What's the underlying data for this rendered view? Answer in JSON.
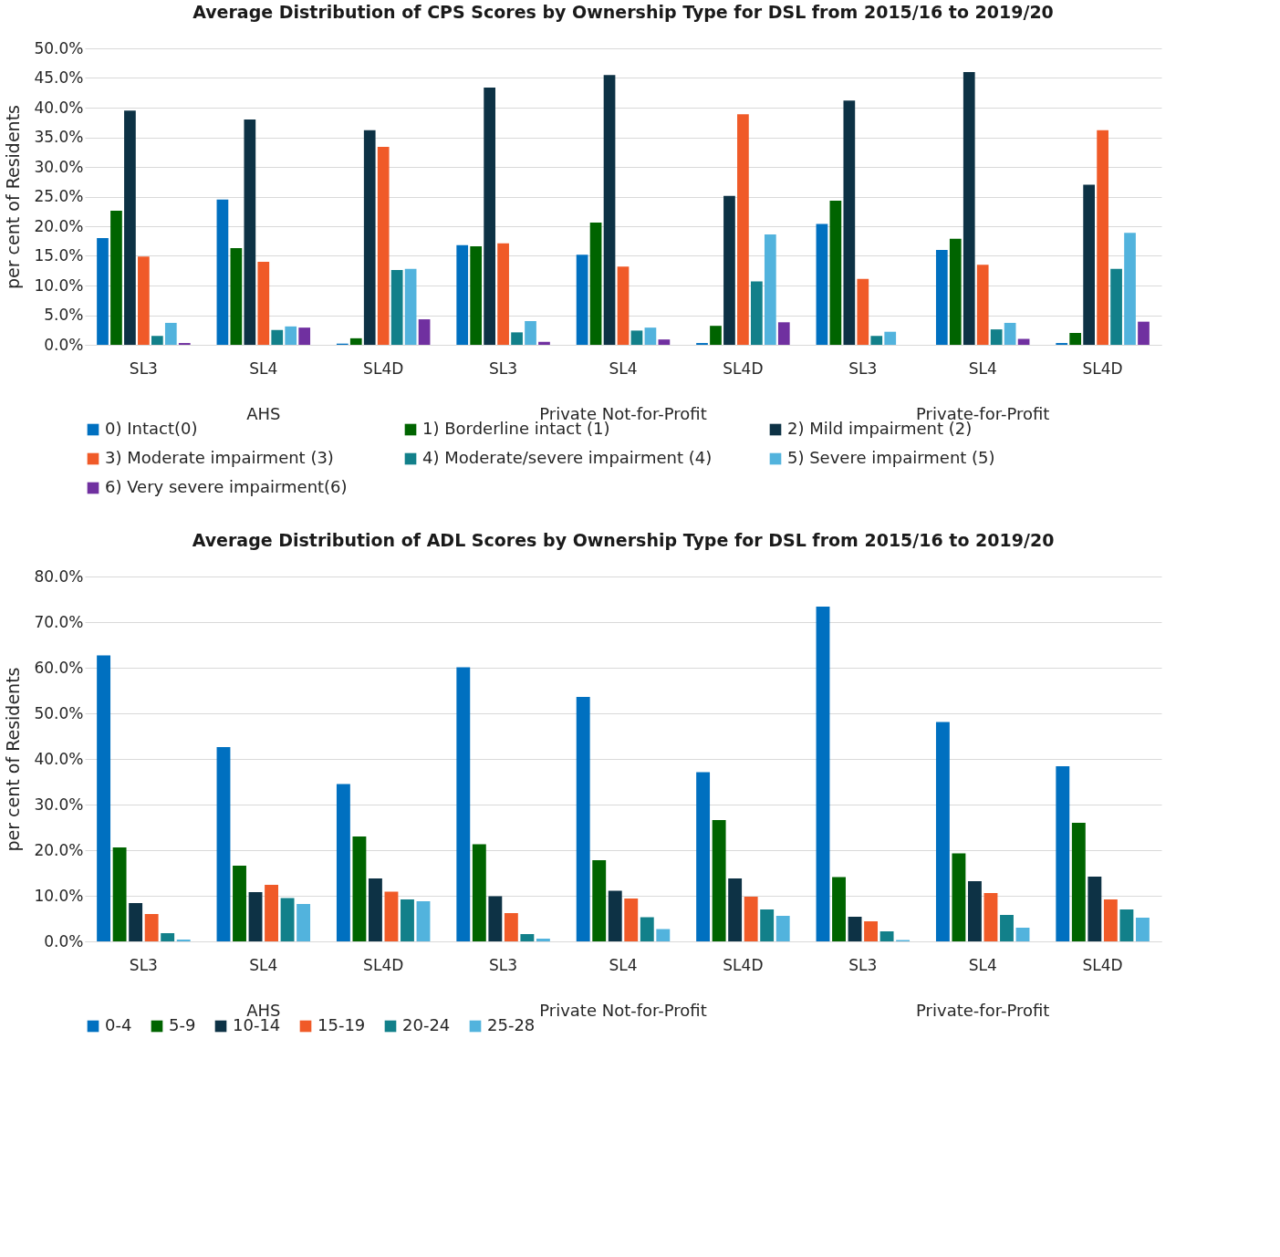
{
  "chart_data": [
    {
      "type": "bar",
      "title": "Average Distribution of CPS Scores by Ownership Type for DSL from 2015/16 to 2019/20",
      "ylabel": "per cent of  Residents",
      "categories": [
        "SL3",
        "SL4",
        "SL4D",
        "SL3",
        "SL4",
        "SL4D",
        "SL3",
        "SL4",
        "SL4D"
      ],
      "annotations": [
        "AHS",
        "Private Not-for-Profit",
        "Private-for-Profit"
      ],
      "series": [
        {
          "name": "0) Intact(0)",
          "color": "#0070c0",
          "values": [
            18.0,
            24.5,
            0.2,
            16.8,
            15.2,
            0.3,
            20.4,
            16.0,
            0.3
          ]
        },
        {
          "name": "1) Borderline intact (1)",
          "color": "#006400",
          "values": [
            22.6,
            16.3,
            1.1,
            16.6,
            20.6,
            3.2,
            24.3,
            17.9,
            2.0
          ]
        },
        {
          "name": "2) Mild impairment (2)",
          "color": "#0d3245",
          "values": [
            39.5,
            38.0,
            36.2,
            43.4,
            45.5,
            25.1,
            41.2,
            46.0,
            27.0
          ]
        },
        {
          "name": "3) Moderate impairment (3)",
          "color": "#f05a28",
          "values": [
            14.9,
            14.0,
            33.4,
            17.1,
            13.2,
            38.9,
            11.1,
            13.5,
            36.2
          ]
        },
        {
          "name": "4) Moderate/severe impairment (4)",
          "color": "#12808a",
          "values": [
            1.5,
            2.5,
            12.6,
            2.1,
            2.4,
            10.7,
            1.5,
            2.6,
            12.8
          ]
        },
        {
          "name": "5) Severe impairment (5)",
          "color": "#52b3dd",
          "values": [
            3.7,
            3.1,
            12.8,
            4.0,
            2.9,
            18.6,
            2.2,
            3.7,
            18.9
          ]
        },
        {
          "name": "6) Very severe impairment(6)",
          "color": "#7030a0",
          "values": [
            0.3,
            2.9,
            4.3,
            0.5,
            0.9,
            3.8,
            0.0,
            1.0,
            3.9
          ]
        }
      ],
      "ylim": [
        0,
        50
      ],
      "yticks": [
        {
          "value": 0,
          "label": "0.0%"
        },
        {
          "value": 5,
          "label": "5.0%"
        },
        {
          "value": 10,
          "label": "10.0%"
        },
        {
          "value": 15,
          "label": "15.0%"
        },
        {
          "value": 20,
          "label": "20.0%"
        },
        {
          "value": 25,
          "label": "25.0%"
        },
        {
          "value": 30,
          "label": "30.0%"
        },
        {
          "value": 35,
          "label": "35.0%"
        },
        {
          "value": 40,
          "label": "40.0%"
        },
        {
          "value": 45,
          "label": "45.0%"
        },
        {
          "value": 50,
          "label": "50.0%"
        }
      ],
      "grid": "y",
      "legend": "bottom"
    },
    {
      "type": "bar",
      "title": "Average Distribution of ADL Scores by Ownership Type for DSL from 2015/16 to 2019/20",
      "ylabel": "per cent of Residents",
      "categories": [
        "SL3",
        "SL4",
        "SL4D",
        "SL3",
        "SL4",
        "SL4D",
        "SL3",
        "SL4",
        "SL4D"
      ],
      "annotations": [
        "AHS",
        "Private Not-for-Profit",
        "Private-for-Profit"
      ],
      "series": [
        {
          "name": "0-4",
          "color": "#0070c0",
          "values": [
            62.7,
            42.6,
            34.5,
            60.1,
            53.6,
            37.1,
            73.4,
            48.1,
            38.4
          ]
        },
        {
          "name": "5-9",
          "color": "#006400",
          "values": [
            20.6,
            16.6,
            23.0,
            21.3,
            17.8,
            26.6,
            14.1,
            19.3,
            26.0
          ]
        },
        {
          "name": "10-14",
          "color": "#0d3245",
          "values": [
            8.4,
            10.8,
            13.8,
            9.9,
            11.1,
            13.8,
            5.4,
            13.2,
            14.2
          ]
        },
        {
          "name": "15-19",
          "color": "#f05a28",
          "values": [
            6.0,
            12.4,
            10.9,
            6.2,
            9.4,
            9.8,
            4.4,
            10.6,
            9.2
          ]
        },
        {
          "name": "20-24",
          "color": "#12808a",
          "values": [
            1.8,
            9.5,
            9.2,
            1.6,
            5.3,
            7.0,
            2.2,
            5.8,
            7.0
          ]
        },
        {
          "name": "25-28",
          "color": "#52b3dd",
          "values": [
            0.4,
            8.2,
            8.8,
            0.6,
            2.7,
            5.6,
            0.3,
            3.0,
            5.2
          ]
        }
      ],
      "ylim": [
        0,
        80
      ],
      "yticks": [
        {
          "value": 0,
          "label": "0.0%"
        },
        {
          "value": 10,
          "label": "10.0%"
        },
        {
          "value": 20,
          "label": "20.0%"
        },
        {
          "value": 30,
          "label": "30.0%"
        },
        {
          "value": 40,
          "label": "40.0%"
        },
        {
          "value": 50,
          "label": "50.0%"
        },
        {
          "value": 60,
          "label": "60.0%"
        },
        {
          "value": 70,
          "label": "70.0%"
        },
        {
          "value": 80,
          "label": "80.0%"
        }
      ],
      "grid": "y",
      "legend": "bottom"
    }
  ]
}
